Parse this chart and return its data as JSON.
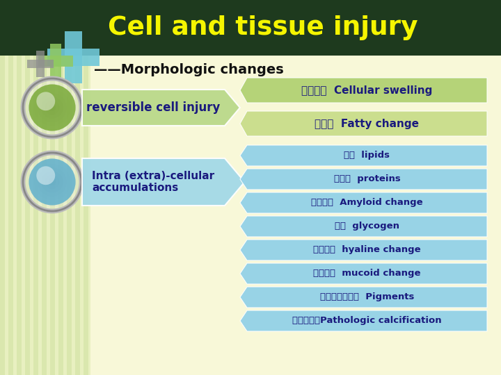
{
  "title": "Cell and tissue injury",
  "subtitle": "——Morphologic changes",
  "title_bg": "#1e3a1e",
  "title_color": "#f5f500",
  "bg_color": "#f8f8d8",
  "subtitle_color": "#111111",
  "box1_text": "reversible cell injury",
  "box1_color": "#b8d888",
  "box2_text": "Intra (extra)-cellular\naccumulations",
  "box2_color": "#a0d8e8",
  "arrow1_items": [
    {
      "text": "细胞肿胀  Cellular swelling",
      "bg": "#c8e098"
    },
    {
      "text": "脂肪变  Fatty change",
      "bg": "#d0e8a0"
    }
  ],
  "arrow2_items": [
    {
      "text": "脂质  lipids",
      "bg": "#90d0e8"
    },
    {
      "text": "蛋白质  proteins",
      "bg": "#90d0e8"
    },
    {
      "text": "淠粉样变  Amyloid change",
      "bg": "#90d0e8"
    },
    {
      "text": "糖原  glycogen",
      "bg": "#90d0e8"
    },
    {
      "text": "玻璃样变  hyaline change",
      "bg": "#90d0e8"
    },
    {
      "text": "黏液样变  mucoid change",
      "bg": "#90d0e8"
    },
    {
      "text": "病理性色素沉着  Pigments",
      "bg": "#90d0e8"
    },
    {
      "text": "病理性钒化Pathologic calcification",
      "bg": "#90d0e8"
    }
  ],
  "item_text_color": "#1a1a7e",
  "stripe_light": "#e8f0c0",
  "stripe_dark": "#d0e0a0",
  "cross_cyan": "#70c8d8",
  "cross_green": "#90c860",
  "cross_gray": "#909090"
}
